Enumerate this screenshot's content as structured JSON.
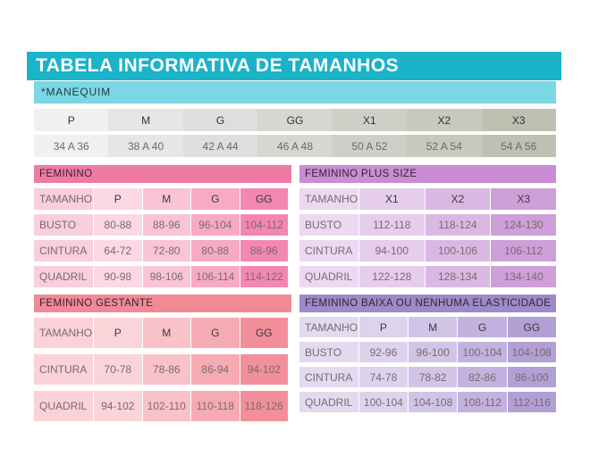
{
  "title": "TABELA INFORMATIVA DE TAMANHOS",
  "manequim_label": "*MANEQUIM",
  "manequim": {
    "sizes": [
      "P",
      "M",
      "G",
      "GG",
      "X1",
      "X2",
      "X3"
    ],
    "ranges": [
      "34 A 36",
      "38 A 40",
      "42 A 44",
      "46 A 48",
      "50 A 52",
      "52 A 54",
      "54 A 56"
    ],
    "size_colors": [
      "#f0f0f0",
      "#e6e6e6",
      "#dededc",
      "#d6d6d2",
      "#cfcfc7",
      "#c8c8bc",
      "#c0c0b2"
    ],
    "range_colors": [
      "#f0f0f0",
      "#e6e6e6",
      "#dededc",
      "#d6d6d2",
      "#cfcfc7",
      "#c8c8bc",
      "#c0c0b2"
    ]
  },
  "feminino": {
    "header": "FEMININO",
    "header_color": "#ef7aa6",
    "label_color": "#f9cedd",
    "rows": [
      {
        "label": "TAMANHO",
        "values": [
          "P",
          "M",
          "G",
          "GG"
        ]
      },
      {
        "label": "BUSTO",
        "values": [
          "80-88",
          "88-96",
          "96-104",
          "104-112"
        ]
      },
      {
        "label": "CINTURA",
        "values": [
          "64-72",
          "72-80",
          "80-88",
          "88-96"
        ]
      },
      {
        "label": "QUADRIL",
        "values": [
          "90-98",
          "98-106",
          "106-114",
          "114-122"
        ]
      }
    ],
    "col_colors": [
      "#fbd8e4",
      "#f9c4d7",
      "#f6aac6",
      "#f287b0"
    ]
  },
  "plus": {
    "header": "FEMININO PLUS SIZE",
    "header_color": "#c88dd3",
    "label_color": "#ecd8f0",
    "rows": [
      {
        "label": "TAMANHO",
        "values": [
          "X1",
          "X2",
          "X3"
        ]
      },
      {
        "label": "BUSTO",
        "values": [
          "112-118",
          "118-124",
          "124-130"
        ]
      },
      {
        "label": "CINTURA",
        "values": [
          "94-100",
          "100-106",
          "106-112"
        ]
      },
      {
        "label": "QUADRIL",
        "values": [
          "122-128",
          "128-134",
          "134-140"
        ]
      }
    ],
    "col_colors": [
      "#e6cdec",
      "#dbb8e3",
      "#cf9fd9"
    ]
  },
  "gestante": {
    "header": "FEMININO GESTANTE",
    "header_color": "#f08a95",
    "label_color": "#fbd2d7",
    "rows": [
      {
        "label": "TAMANHO",
        "values": [
          "P",
          "M",
          "G",
          "GG"
        ]
      },
      {
        "label": "CINTURA",
        "values": [
          "70-78",
          "78-86",
          "86-94",
          "94-102"
        ]
      },
      {
        "label": "QUADRIL",
        "values": [
          "94-102",
          "102-110",
          "110-118",
          "118-126"
        ]
      }
    ],
    "col_colors": [
      "#fbd4d9",
      "#f9c2c8",
      "#f6aab3",
      "#f28f9a"
    ]
  },
  "baixa": {
    "header": "FEMININO BAIXA OU NENHUMA ELASTICIDADE",
    "header_color": "#9d8ac8",
    "label_color": "#e2dbef",
    "rows": [
      {
        "label": "TAMANHO",
        "values": [
          "P",
          "M",
          "G",
          "GG"
        ]
      },
      {
        "label": "BUSTO",
        "values": [
          "92-96",
          "96-100",
          "100-104",
          "104-108"
        ]
      },
      {
        "label": "CINTURA",
        "values": [
          "74-78",
          "78-82",
          "82-86",
          "86-100"
        ]
      },
      {
        "label": "QUADRIL",
        "values": [
          "100-104",
          "104-108",
          "108-112",
          "112-116"
        ]
      }
    ],
    "col_colors": [
      "#ddd3ed",
      "#d1c4e6",
      "#c3b2dd",
      "#b29fd4"
    ]
  }
}
